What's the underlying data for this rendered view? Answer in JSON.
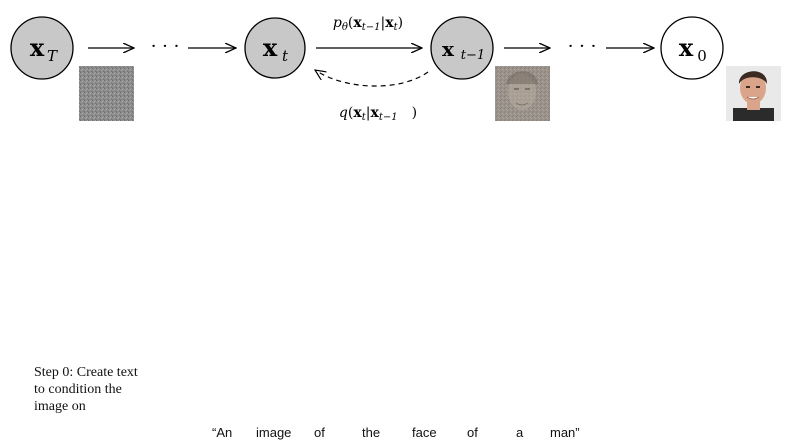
{
  "nodes": {
    "xT": {
      "base": "x",
      "sub": "T"
    },
    "xt": {
      "base": "x",
      "sub": "t"
    },
    "xt1": {
      "base": "x",
      "sub": "t−1"
    },
    "x0": {
      "base": "x",
      "sub": "0"
    }
  },
  "ellipsis": "· · ·",
  "forward_label": {
    "p": "p",
    "theta": "θ",
    "open": "(",
    "x1": "x",
    "x1sub": "t−1",
    "bar": "|",
    "x2": "x",
    "x2sub": "t",
    "close": ")"
  },
  "reverse_label": {
    "q": "q",
    "open": "(",
    "x1": "x",
    "x1sub": "t",
    "bar": "|",
    "x2": "x",
    "x2sub": "t−1",
    "close": ")"
  },
  "step_caption": [
    "Step 0: Create text",
    "to condition the",
    "image on"
  ],
  "prompt_words": [
    "“An",
    "image",
    "of",
    "the",
    "face",
    "of",
    "a",
    "man”"
  ],
  "colors": {
    "node_fill": "#c8c8c8",
    "node_fill_final": "#ffffff",
    "noise_tile": "#8a8a8a",
    "partial_tile": "#9c948d",
    "face_bg": "#e9e9e9",
    "skin": "#d9a48a",
    "hair": "#3a2a22"
  },
  "icons": [
    "noise-image-icon",
    "partial-face-image-icon",
    "face-photo-icon"
  ]
}
